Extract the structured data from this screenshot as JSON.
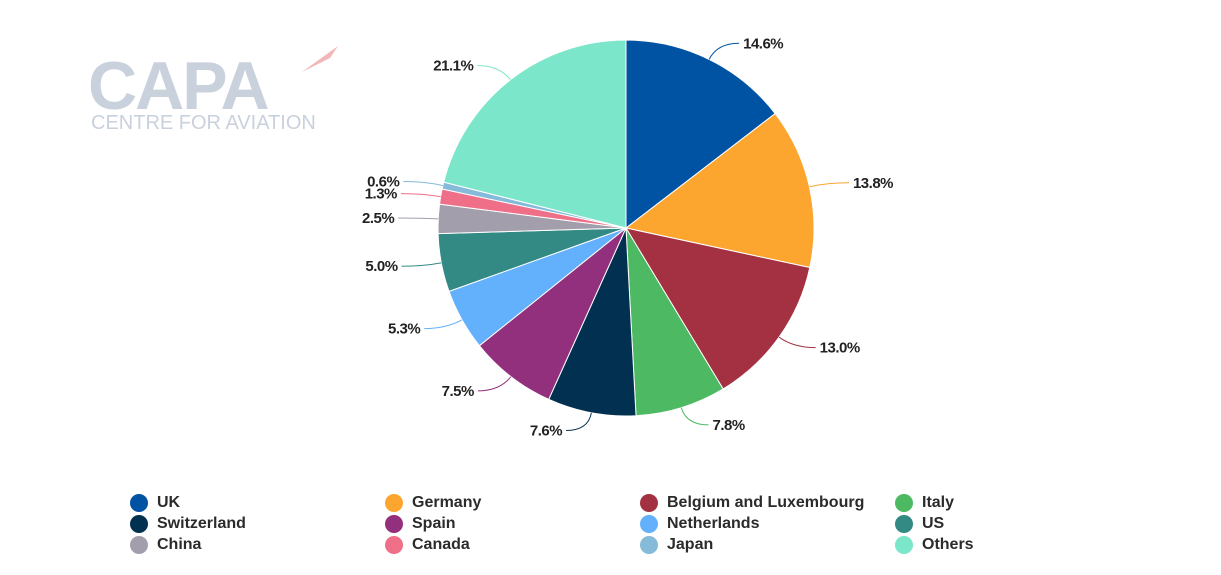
{
  "logo": {
    "main": "CAPA",
    "sub": "CENTRE FOR AVIATION"
  },
  "chart_data": {
    "type": "pie",
    "title": "",
    "slices": [
      {
        "name": "UK",
        "value": 14.6,
        "label": "14.6%",
        "color": "#0053a3"
      },
      {
        "name": "Germany",
        "value": 13.8,
        "label": "13.8%",
        "color": "#fca630"
      },
      {
        "name": "Belgium and Luxembourg",
        "value": 13.0,
        "label": "13.0%",
        "color": "#a33142"
      },
      {
        "name": "Italy",
        "value": 7.8,
        "label": "7.8%",
        "color": "#4dba63"
      },
      {
        "name": "Switzerland",
        "value": 7.6,
        "label": "7.6%",
        "color": "#023050"
      },
      {
        "name": "Spain",
        "value": 7.5,
        "label": "7.5%",
        "color": "#92307e"
      },
      {
        "name": "Netherlands",
        "value": 5.3,
        "label": "5.3%",
        "color": "#63b0fc"
      },
      {
        "name": "US",
        "value": 5.0,
        "label": "5.0%",
        "color": "#338a85"
      },
      {
        "name": "China",
        "value": 2.5,
        "label": "2.5%",
        "color": "#a39eab"
      },
      {
        "name": "Canada",
        "value": 1.3,
        "label": "1.3%",
        "color": "#f06f88"
      },
      {
        "name": "Japan",
        "value": 0.6,
        "label": "0.6%",
        "color": "#85bad8"
      },
      {
        "name": "Others",
        "value": 21.1,
        "label": "21.1%",
        "color": "#7be6c9"
      }
    ],
    "legend_position": "bottom"
  }
}
